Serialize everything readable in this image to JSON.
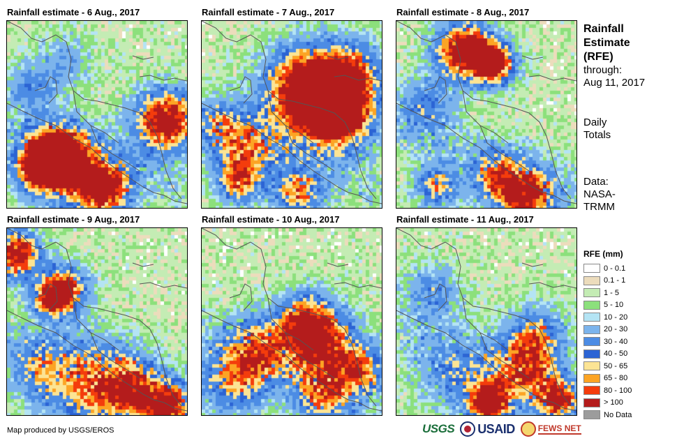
{
  "panels": [
    {
      "title": "Rainfall estimate - 6 Aug., 2017"
    },
    {
      "title": "Rainfall estimate - 7 Aug., 2017"
    },
    {
      "title": "Rainfall estimate - 8 Aug., 2017"
    },
    {
      "title": "Rainfall estimate - 9 Aug., 2017"
    },
    {
      "title": "Rainfall estimate - 10 Aug., 2017"
    },
    {
      "title": "Rainfall estimate - 11 Aug., 2017"
    }
  ],
  "side": {
    "title_lines": [
      "Rainfall",
      "Estimate",
      "(RFE)"
    ],
    "through_label": "through:",
    "through_date": "Aug 11, 2017",
    "totals_lines": [
      "Daily",
      "Totals"
    ],
    "data_lines": [
      "Data:",
      "NASA-",
      "TRMM"
    ]
  },
  "legend": {
    "title": "RFE (mm)",
    "items": [
      {
        "label": "0 - 0.1",
        "color": "#ffffff"
      },
      {
        "label": "0.1 - 1",
        "color": "#ecdcbc"
      },
      {
        "label": "1 - 5",
        "color": "#c4ecb4"
      },
      {
        "label": "5 - 10",
        "color": "#8ce07c"
      },
      {
        "label": "10 - 20",
        "color": "#b4e4f4"
      },
      {
        "label": "20 - 30",
        "color": "#7cb4ec"
      },
      {
        "label": "30 - 40",
        "color": "#4c8ce4"
      },
      {
        "label": "40 - 50",
        "color": "#2c64d4"
      },
      {
        "label": "50 - 65",
        "color": "#fce494"
      },
      {
        "label": "65 - 80",
        "color": "#fca424"
      },
      {
        "label": "80 - 100",
        "color": "#f43c0c"
      },
      {
        "label": "> 100",
        "color": "#b41c1c"
      },
      {
        "label": "No Data",
        "color": "#9c9c9c"
      }
    ]
  },
  "credit": "Map produced by USGS/EROS",
  "logos": {
    "usgs": "USGS",
    "usaid": "USAID",
    "fews": "FEWS NET"
  }
}
